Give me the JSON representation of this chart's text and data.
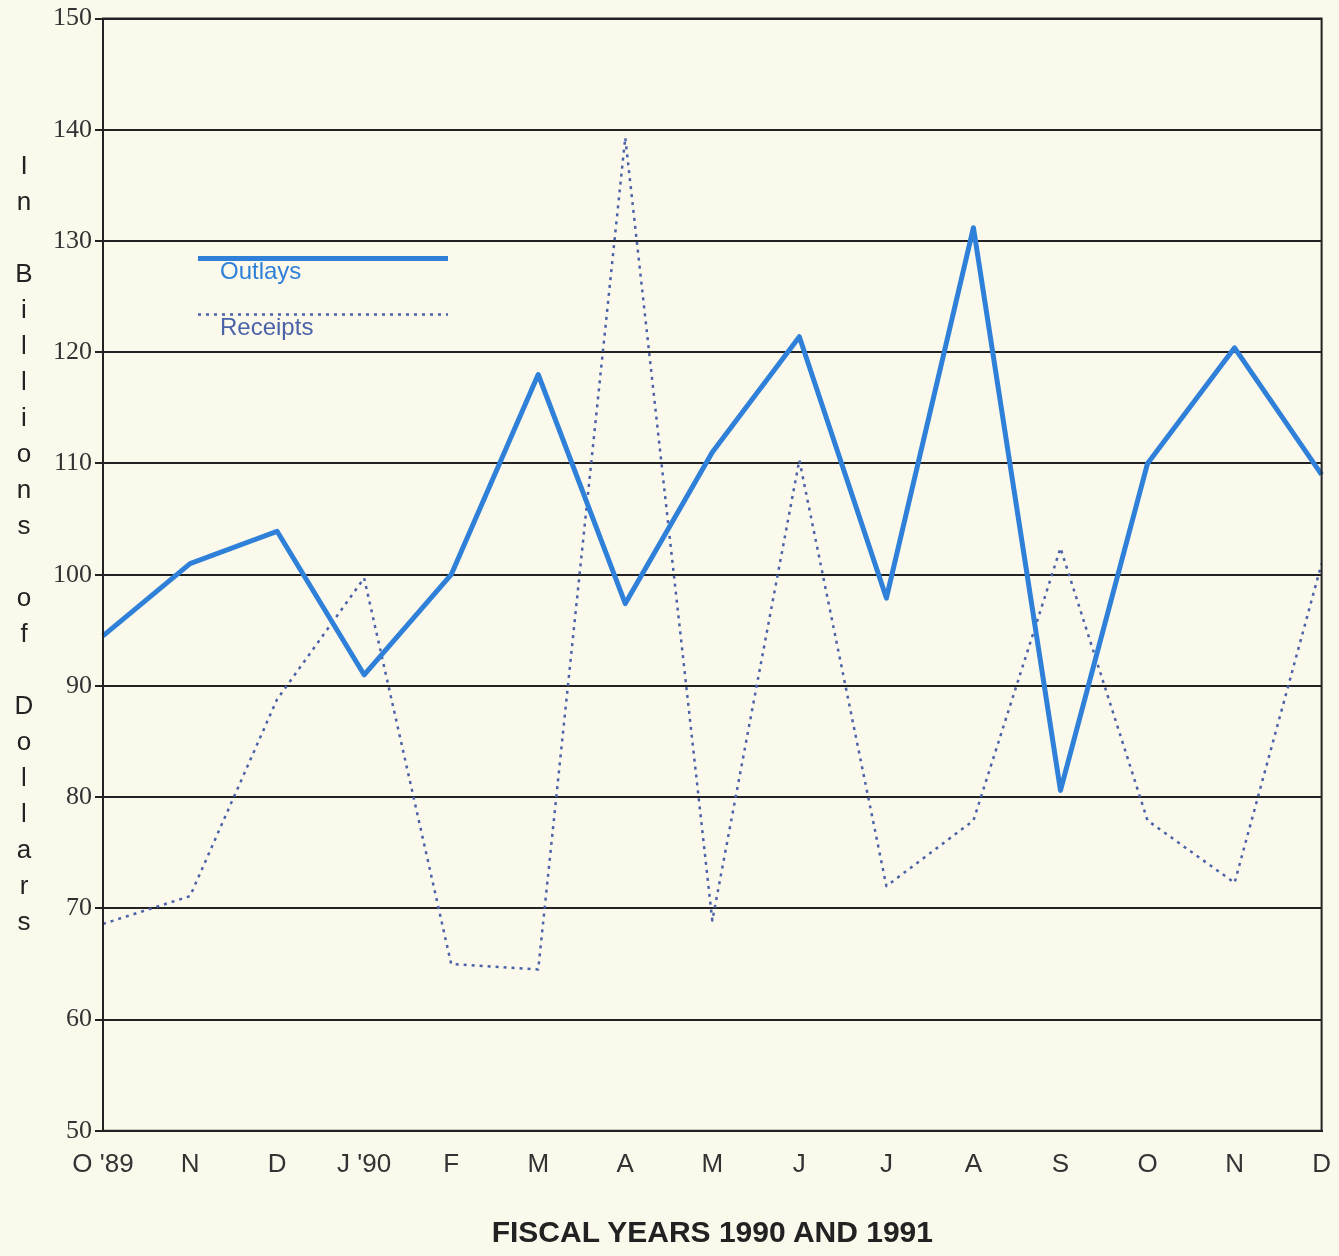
{
  "chart_data": {
    "type": "line",
    "xlabel": "FISCAL YEARS 1990 AND 1991",
    "ylabel": "In Billions of Dollars",
    "categories": [
      "O '89",
      "N",
      "D",
      "J '90",
      "F",
      "M",
      "A",
      "M",
      "J",
      "J",
      "A",
      "S",
      "O",
      "N",
      "D"
    ],
    "series": [
      {
        "name": "Outlays",
        "color": "#2f80d8",
        "line_style": "solid",
        "values": [
          94.5,
          101,
          103.9,
          91,
          100,
          118,
          97.4,
          111,
          121.4,
          97.9,
          131.2,
          80.6,
          110,
          120.4,
          109
        ]
      },
      {
        "name": "Receipts",
        "color": "#4a62a8",
        "line_style": "dotted",
        "values": [
          68.6,
          71.1,
          88.8,
          99.7,
          65,
          64.5,
          139.3,
          68.9,
          110.3,
          72,
          77.9,
          102.4,
          77.9,
          72.3,
          101
        ]
      }
    ],
    "ylim": [
      50,
      150
    ],
    "yticks": [
      50,
      60,
      70,
      80,
      90,
      100,
      110,
      120,
      130,
      140,
      150
    ],
    "grid": "y",
    "legend": "top left",
    "marker": "none"
  }
}
